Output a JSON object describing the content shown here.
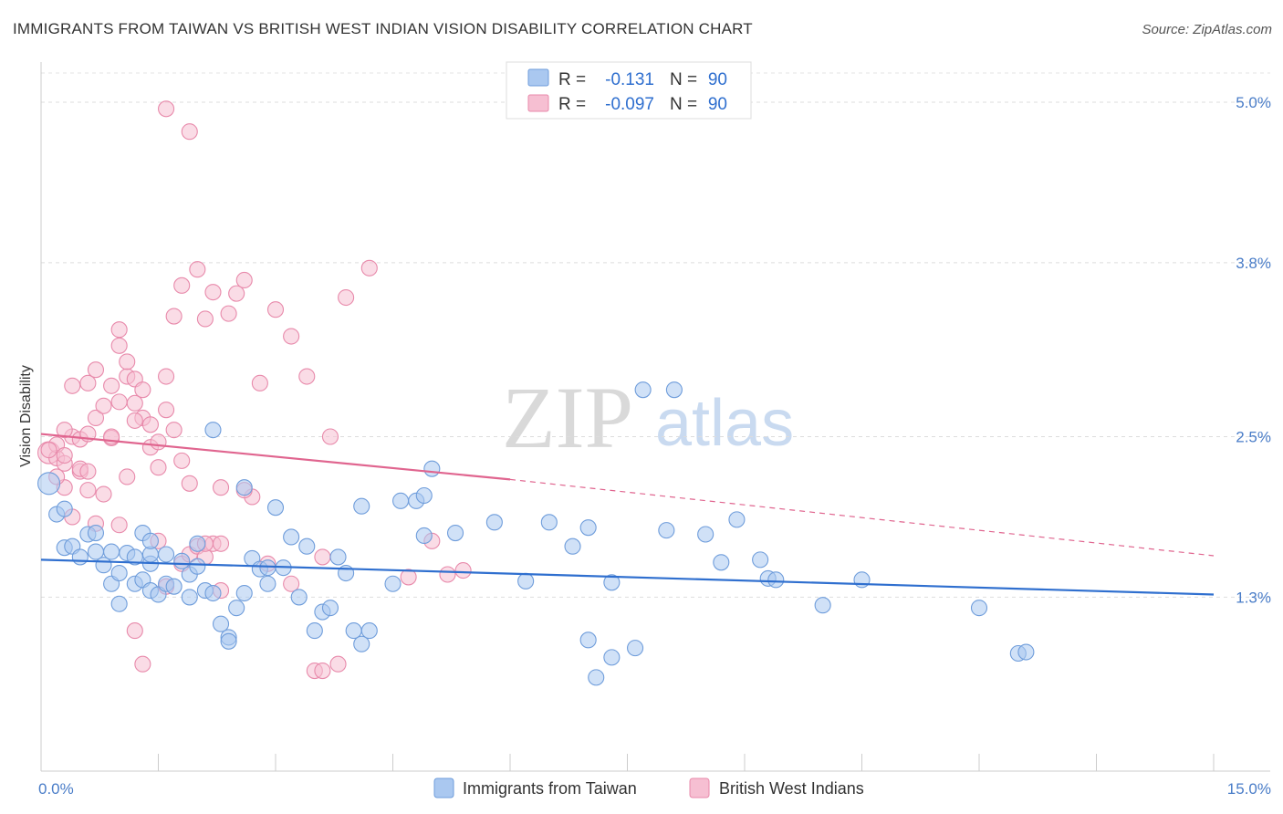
{
  "chart_data": {
    "type": "scatter",
    "title": "IMMIGRANTS FROM TAIWAN VS BRITISH WEST INDIAN VISION DISABILITY CORRELATION CHART",
    "source": "Source: ZipAtlas.com",
    "xlabel": "",
    "ylabel": "Vision Disability",
    "xlim": [
      0,
      15
    ],
    "ylim": [
      0,
      5.3
    ],
    "x_tick_labels": [
      "0.0%",
      "15.0%"
    ],
    "y_ticks": [
      1.3,
      2.5,
      3.8,
      5.0
    ],
    "y_tick_labels": [
      "1.3%",
      "2.5%",
      "3.8%",
      "5.0%"
    ],
    "watermark": {
      "zip": "ZIP",
      "atlas": "atlas"
    },
    "legend": {
      "rows": [
        {
          "r_label": "R =",
          "r_value": "-0.131",
          "n_label": "N =",
          "n_value": "90"
        },
        {
          "r_label": "R =",
          "r_value": "-0.097",
          "n_label": "N =",
          "n_value": "90"
        }
      ]
    },
    "colors": {
      "blue_fill": "#aac8f0",
      "blue_stroke": "#6f9ddb",
      "blue_line": "#2f6fcf",
      "pink_fill": "#f6bfd2",
      "pink_stroke": "#e88aab",
      "pink_line": "#e0658f",
      "tick_text": "#4a7dc8"
    },
    "series": [
      {
        "name": "Immigrants from Taiwan",
        "trend": {
          "x0": 0.0,
          "y0": 1.58,
          "x1": 15.0,
          "y1": 1.32
        },
        "points": [
          [
            0.1,
            2.15
          ],
          [
            0.2,
            1.92
          ],
          [
            0.3,
            1.96
          ],
          [
            0.3,
            1.67
          ],
          [
            0.4,
            1.68
          ],
          [
            0.5,
            1.6
          ],
          [
            0.6,
            1.77
          ],
          [
            0.7,
            1.64
          ],
          [
            0.7,
            1.78
          ],
          [
            0.8,
            1.54
          ],
          [
            0.9,
            1.64
          ],
          [
            0.9,
            1.4
          ],
          [
            1.0,
            1.48
          ],
          [
            1.0,
            1.25
          ],
          [
            1.1,
            1.63
          ],
          [
            1.2,
            1.4
          ],
          [
            1.2,
            1.6
          ],
          [
            1.3,
            1.43
          ],
          [
            1.3,
            1.78
          ],
          [
            1.4,
            1.55
          ],
          [
            1.4,
            1.62
          ],
          [
            1.4,
            1.35
          ],
          [
            1.5,
            1.32
          ],
          [
            1.6,
            1.4
          ],
          [
            1.6,
            1.62
          ],
          [
            1.7,
            1.38
          ],
          [
            1.8,
            1.57
          ],
          [
            1.9,
            1.47
          ],
          [
            1.9,
            1.3
          ],
          [
            2.0,
            1.53
          ],
          [
            2.1,
            1.35
          ],
          [
            2.2,
            1.33
          ],
          [
            2.3,
            1.1
          ],
          [
            2.4,
            1.0
          ],
          [
            2.4,
            0.97
          ],
          [
            2.5,
            1.22
          ],
          [
            2.6,
            2.12
          ],
          [
            2.6,
            1.33
          ],
          [
            2.7,
            1.59
          ],
          [
            2.8,
            1.51
          ],
          [
            2.9,
            1.52
          ],
          [
            2.9,
            1.4
          ],
          [
            3.0,
            1.97
          ],
          [
            3.1,
            1.52
          ],
          [
            3.2,
            1.75
          ],
          [
            3.3,
            1.3
          ],
          [
            3.4,
            1.68
          ],
          [
            3.5,
            1.05
          ],
          [
            3.6,
            1.19
          ],
          [
            3.7,
            1.22
          ],
          [
            3.8,
            1.6
          ],
          [
            3.9,
            1.48
          ],
          [
            4.0,
            1.05
          ],
          [
            4.1,
            0.95
          ],
          [
            4.1,
            1.98
          ],
          [
            4.2,
            1.05
          ],
          [
            4.5,
            1.4
          ],
          [
            4.6,
            2.02
          ],
          [
            4.8,
            2.02
          ],
          [
            4.9,
            2.06
          ],
          [
            4.9,
            1.76
          ],
          [
            5.0,
            2.26
          ],
          [
            5.3,
            1.78
          ],
          [
            5.8,
            1.86
          ],
          [
            6.2,
            1.42
          ],
          [
            6.5,
            1.86
          ],
          [
            6.8,
            1.68
          ],
          [
            7.0,
            1.82
          ],
          [
            7.0,
            0.98
          ],
          [
            7.1,
            0.7
          ],
          [
            7.3,
            1.41
          ],
          [
            7.3,
            0.85
          ],
          [
            7.6,
            0.92
          ],
          [
            7.7,
            2.85
          ],
          [
            8.0,
            1.8
          ],
          [
            8.1,
            2.85
          ],
          [
            8.5,
            1.77
          ],
          [
            8.7,
            1.56
          ],
          [
            8.9,
            1.88
          ],
          [
            9.2,
            1.58
          ],
          [
            9.3,
            1.44
          ],
          [
            9.4,
            1.43
          ],
          [
            10.0,
            1.24
          ],
          [
            10.5,
            1.43
          ],
          [
            12.0,
            1.22
          ],
          [
            12.5,
            0.88
          ],
          [
            12.6,
            0.89
          ],
          [
            1.4,
            1.72
          ],
          [
            2.2,
            2.55
          ],
          [
            2.0,
            1.7
          ]
        ]
      },
      {
        "name": "British West Indians",
        "trend": {
          "x0": 0.0,
          "y0": 2.52,
          "x1": 6.0,
          "y1": 2.18,
          "dash_x1": 15.0,
          "dash_y1": 1.61
        },
        "points": [
          [
            0.1,
            2.38
          ],
          [
            0.2,
            2.34
          ],
          [
            0.3,
            2.3
          ],
          [
            0.3,
            2.12
          ],
          [
            0.4,
            2.5
          ],
          [
            0.4,
            2.88
          ],
          [
            0.5,
            2.24
          ],
          [
            0.5,
            2.48
          ],
          [
            0.6,
            2.1
          ],
          [
            0.6,
            2.9
          ],
          [
            0.7,
            2.64
          ],
          [
            0.7,
            3.0
          ],
          [
            0.8,
            2.73
          ],
          [
            0.9,
            2.49
          ],
          [
            0.9,
            2.88
          ],
          [
            1.0,
            2.76
          ],
          [
            1.0,
            3.18
          ],
          [
            1.1,
            2.95
          ],
          [
            1.1,
            3.06
          ],
          [
            1.2,
            2.93
          ],
          [
            1.2,
            2.75
          ],
          [
            1.3,
            2.64
          ],
          [
            1.3,
            2.85
          ],
          [
            1.4,
            2.59
          ],
          [
            1.4,
            2.42
          ],
          [
            1.5,
            2.27
          ],
          [
            1.5,
            2.46
          ],
          [
            1.6,
            2.95
          ],
          [
            1.6,
            2.7
          ],
          [
            1.7,
            2.55
          ],
          [
            1.7,
            3.4
          ],
          [
            1.8,
            2.32
          ],
          [
            1.8,
            3.63
          ],
          [
            1.9,
            2.15
          ],
          [
            2.0,
            3.75
          ],
          [
            2.1,
            3.38
          ],
          [
            2.2,
            3.58
          ],
          [
            2.3,
            2.12
          ],
          [
            2.4,
            3.42
          ],
          [
            2.5,
            3.57
          ],
          [
            2.6,
            3.67
          ],
          [
            2.7,
            2.05
          ],
          [
            2.8,
            2.9
          ],
          [
            3.0,
            3.45
          ],
          [
            3.2,
            3.25
          ],
          [
            3.4,
            2.95
          ],
          [
            3.6,
            1.6
          ],
          [
            3.7,
            2.5
          ],
          [
            3.9,
            3.54
          ],
          [
            4.2,
            3.76
          ],
          [
            4.7,
            1.45
          ],
          [
            5.0,
            1.72
          ],
          [
            5.2,
            1.47
          ],
          [
            1.2,
            1.05
          ],
          [
            1.3,
            0.8
          ],
          [
            1.6,
            1.38
          ],
          [
            1.8,
            1.55
          ],
          [
            1.9,
            1.62
          ],
          [
            2.0,
            1.68
          ],
          [
            2.1,
            1.6
          ],
          [
            2.2,
            1.7
          ],
          [
            2.3,
            1.35
          ],
          [
            2.6,
            2.1
          ],
          [
            2.9,
            1.55
          ],
          [
            3.2,
            1.4
          ],
          [
            3.5,
            0.75
          ],
          [
            3.6,
            0.75
          ],
          [
            3.8,
            0.8
          ],
          [
            0.2,
            2.44
          ],
          [
            0.3,
            2.36
          ],
          [
            0.5,
            2.26
          ],
          [
            0.6,
            2.52
          ],
          [
            0.8,
            2.07
          ],
          [
            0.9,
            2.5
          ],
          [
            1.0,
            1.84
          ],
          [
            1.1,
            2.2
          ],
          [
            1.2,
            2.62
          ],
          [
            0.1,
            2.4
          ],
          [
            0.2,
            2.2
          ],
          [
            0.4,
            1.9
          ],
          [
            0.7,
            1.85
          ],
          [
            1.5,
            1.72
          ],
          [
            1.0,
            3.3
          ],
          [
            1.6,
            4.95
          ],
          [
            1.9,
            4.78
          ],
          [
            2.1,
            1.7
          ],
          [
            2.3,
            1.7
          ],
          [
            0.3,
            2.55
          ],
          [
            5.4,
            1.5
          ],
          [
            0.6,
            2.24
          ]
        ]
      }
    ]
  }
}
